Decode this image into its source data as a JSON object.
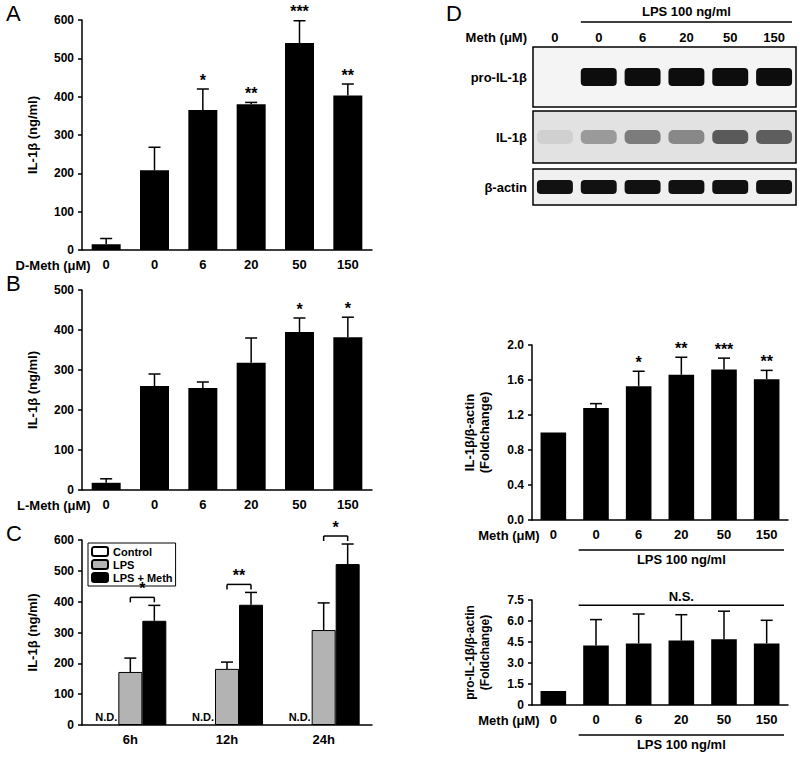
{
  "blot": {
    "title": "D",
    "treatment": "LPS 100 ng/ml",
    "x_label": "Meth (μM)",
    "lanes": [
      "0",
      "0",
      "6",
      "20",
      "50",
      "150"
    ],
    "rows": [
      "pro-IL-1β",
      "IL-1β",
      "β-actin"
    ]
  },
  "chart_data": [
    {
      "type": "bar",
      "title": "A",
      "y_label": "IL-1β (ng/ml)",
      "x_label": "D-Meth (μM)",
      "categories": [
        "0",
        "0",
        "6",
        "20",
        "50",
        "150"
      ],
      "values": [
        15,
        208,
        365,
        380,
        540,
        403
      ],
      "errors": [
        15,
        60,
        55,
        5,
        58,
        30
      ],
      "significance": [
        null,
        null,
        "*",
        "**",
        "***",
        "**"
      ],
      "color": "#000000",
      "ylim": [
        0,
        600
      ],
      "yticks": [
        0,
        100,
        200,
        300,
        400,
        500,
        600
      ],
      "grid": false
    },
    {
      "type": "bar",
      "title": "B",
      "y_label": "IL-1β (ng/ml)",
      "x_label": "L-Meth (μM)",
      "categories": [
        "0",
        "0",
        "6",
        "20",
        "50",
        "150"
      ],
      "values": [
        18,
        260,
        255,
        318,
        395,
        382
      ],
      "errors": [
        10,
        30,
        15,
        62,
        35,
        50
      ],
      "significance": [
        null,
        null,
        null,
        null,
        "*",
        "*"
      ],
      "color": "#000000",
      "ylim": [
        0,
        500
      ],
      "yticks": [
        0,
        100,
        200,
        300,
        400,
        500
      ],
      "grid": false
    },
    {
      "type": "bar",
      "title": "C",
      "y_label": "IL-1β (ng/ml)",
      "categories": [
        "6h",
        "12h",
        "24h"
      ],
      "series": [
        {
          "name": "Control",
          "color": "#ffffff",
          "values": [
            null,
            null,
            null
          ],
          "value_labels": [
            "N.D.",
            "N.D.",
            "N.D."
          ]
        },
        {
          "name": "LPS",
          "color": "#b3b3b3",
          "values": [
            172,
            182,
            308
          ],
          "errors": [
            45,
            22,
            88
          ]
        },
        {
          "name": "LPS + Meth",
          "color": "#000000",
          "values": [
            338,
            390,
            522
          ],
          "errors": [
            50,
            40,
            65
          ]
        }
      ],
      "significance": [
        "*",
        "**",
        "*"
      ],
      "ylim": [
        0,
        600
      ],
      "yticks": [
        0,
        100,
        200,
        300,
        400,
        500,
        600
      ],
      "legend": "top-left",
      "grid": false
    },
    {
      "type": "bar",
      "y_label": "IL-1β/β-actin\n(Foldchange)",
      "x_label": "Meth (μM)",
      "treatment": "LPS 100 ng/ml",
      "categories": [
        "0",
        "0",
        "6",
        "20",
        "50",
        "150"
      ],
      "values": [
        1.0,
        1.28,
        1.53,
        1.66,
        1.72,
        1.61
      ],
      "errors": [
        0,
        0.05,
        0.17,
        0.2,
        0.13,
        0.1
      ],
      "significance": [
        null,
        null,
        "*",
        "**",
        "***",
        "**"
      ],
      "color": "#000000",
      "ylim": [
        0,
        2
      ],
      "yticks": [
        {
          "value": 0,
          "label": "0.0"
        },
        0.4,
        0.8,
        1.2,
        1.6,
        {
          "value": 2,
          "label": "2.0"
        }
      ],
      "grid": false
    },
    {
      "type": "bar",
      "y_label": "pro-IL-1β/β-actin\n(Foldchange)",
      "x_label": "Meth (μM)",
      "treatment": "LPS 100 ng/ml",
      "annotation": "N.S.",
      "categories": [
        "0",
        "0",
        "6",
        "20",
        "50",
        "150"
      ],
      "values": [
        1.0,
        4.25,
        4.4,
        4.6,
        4.7,
        4.4
      ],
      "errors": [
        0,
        1.85,
        2.1,
        1.85,
        2.0,
        1.65
      ],
      "color": "#000000",
      "ylim": [
        0,
        7.5
      ],
      "yticks": [
        0,
        1.5,
        {
          "value": 3,
          "label": "3.0"
        },
        4.5,
        {
          "value": 6,
          "label": "6.0"
        },
        7.5
      ],
      "grid": false
    }
  ]
}
